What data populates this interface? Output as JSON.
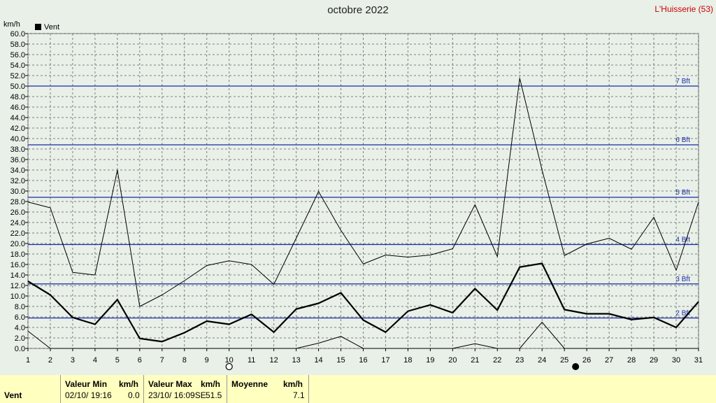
{
  "title": "octobre 2022",
  "location": "L'Huisserie (53)",
  "footer": {
    "series_label": "Vent",
    "min_label": "Valeur Min",
    "min_unit": "km/h",
    "min_date": "02/10/  19:16",
    "min_value": "0.0",
    "max_label": "Valeur Max",
    "max_unit": "km/h",
    "max_date": "23/10/  16:09SE",
    "max_value": "51.5",
    "mean_label": "Moyenne",
    "mean_unit": "km/h",
    "mean_value": "7.1"
  },
  "chart_data": {
    "type": "line",
    "title": "octobre 2022",
    "ylabel": "km/h",
    "legend": "Vent",
    "legend_position": "top-left",
    "ylim": [
      0,
      60
    ],
    "ytick_step": 2,
    "x": [
      1,
      2,
      3,
      4,
      5,
      6,
      7,
      8,
      9,
      10,
      11,
      12,
      13,
      14,
      15,
      16,
      17,
      18,
      19,
      20,
      21,
      22,
      23,
      24,
      25,
      26,
      27,
      28,
      29,
      30,
      31
    ],
    "grid": true,
    "series": [
      {
        "name": "Vent",
        "role": "mean",
        "values": [
          12.8,
          10.2,
          5.9,
          4.6,
          9.3,
          1.9,
          1.3,
          3.0,
          5.2,
          4.6,
          6.5,
          3.1,
          7.5,
          8.6,
          10.6,
          5.4,
          3.1,
          7.1,
          8.3,
          6.8,
          11.4,
          7.3,
          15.5,
          16.2,
          7.4,
          6.6,
          6.6,
          5.5,
          5.9,
          4.0,
          8.9
        ]
      },
      {
        "role": "max",
        "values": [
          27.9,
          26.8,
          14.5,
          14.0,
          34.0,
          8.0,
          10.2,
          12.9,
          15.8,
          16.7,
          16.0,
          12.2,
          21.0,
          29.9,
          22.5,
          16.1,
          17.8,
          17.4,
          17.8,
          19.0,
          27.4,
          17.5,
          51.5,
          34.0,
          17.7,
          19.9,
          21.0,
          18.9,
          25.0,
          14.9,
          27.9
        ]
      },
      {
        "role": "min",
        "values": [
          3.3,
          0,
          0,
          0,
          0,
          0,
          0,
          0,
          0,
          0,
          0,
          0,
          0,
          1.0,
          2.3,
          0,
          0,
          0,
          0,
          0,
          0.9,
          0,
          0,
          5.0,
          0,
          0,
          0,
          0,
          0,
          0,
          0
        ]
      }
    ],
    "beaufort_lines": [
      {
        "value": 5.8,
        "label": "2 Bft"
      },
      {
        "value": 12.3,
        "label": "3 Bft"
      },
      {
        "value": 19.8,
        "label": "4 Bft"
      },
      {
        "value": 28.8,
        "label": "5 Bft"
      },
      {
        "value": 38.8,
        "label": "6 Bft"
      },
      {
        "value": 50.0,
        "label": "7 Bft"
      }
    ],
    "moon_markers": [
      {
        "day": 10,
        "phase": "full",
        "symbol": "○"
      },
      {
        "day": 25.5,
        "phase": "new",
        "symbol": "●"
      }
    ],
    "colors": {
      "grid": "#7f7f7f",
      "bft": "#1a2aa8",
      "mean": "#000000",
      "max": "#000000",
      "min": "#000000"
    }
  }
}
